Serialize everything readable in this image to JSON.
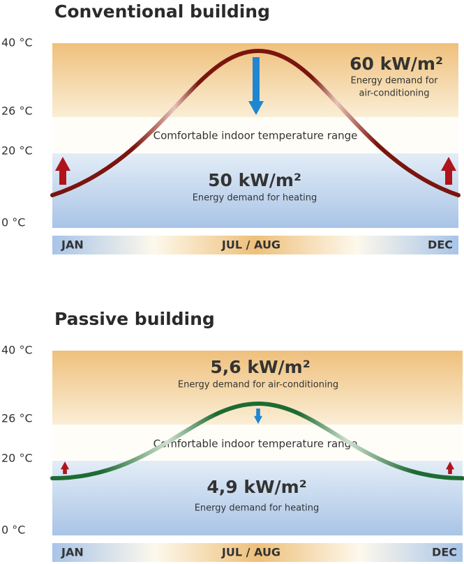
{
  "charts": [
    {
      "title": "Conventional building",
      "y_labels": [
        "40 °C",
        "26 °C",
        "20 °C",
        "0 °C"
      ],
      "top_value": "60 kW/m²",
      "top_caption": [
        "Energy demand for",
        "air-conditioning"
      ],
      "middle_label": "Comfortable indoor temperature range",
      "bottom_value": "50 kW/m²",
      "bottom_caption": [
        "Energy demand for heating"
      ],
      "months": [
        "JAN",
        "JUL / AUG",
        "DEC"
      ]
    },
    {
      "title": "Passive building",
      "y_labels": [
        "40 °C",
        "26 °C",
        "20 °C",
        "0 °C"
      ],
      "top_value": "5,6 kW/m²",
      "top_caption": [
        "Energy demand for air-conditioning"
      ],
      "middle_label": "Comfortable indoor temperature range",
      "bottom_value": "4,9 kW/m²",
      "bottom_caption": [
        "Energy demand for heating"
      ],
      "months": [
        "JAN",
        "JUL / AUG",
        "DEC"
      ]
    }
  ]
}
